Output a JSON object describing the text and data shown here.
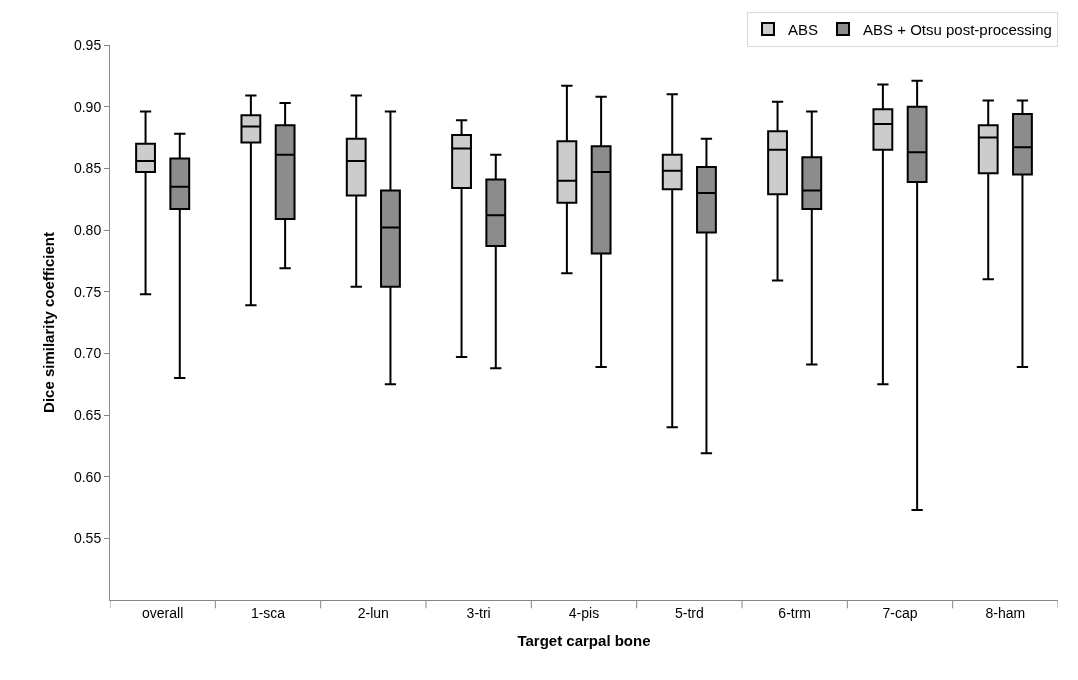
{
  "chart_data": {
    "type": "box",
    "xlabel": "Target carpal bone",
    "ylabel": "Dice similarity coefficient",
    "categories": [
      "overall",
      "1-sca",
      "2-lun",
      "3-tri",
      "4-pis",
      "5-trd",
      "6-trm",
      "7-cap",
      "8-ham"
    ],
    "ylim": [
      0.5,
      0.95
    ],
    "yticks": [
      0.55,
      {
        "value": 0.6,
        "label": "0.60"
      },
      0.65,
      {
        "value": 0.7,
        "label": "0.70"
      },
      0.75,
      {
        "value": 0.8,
        "label": "0.80"
      },
      0.85,
      {
        "value": 0.9,
        "label": "0.90"
      },
      0.95
    ],
    "grid": false,
    "legend": "top right",
    "series": [
      {
        "name": "ABS",
        "color": "#cccccc",
        "boxes": [
          {
            "low": 0.748,
            "q1": 0.847,
            "median": 0.856,
            "q3": 0.87,
            "high": 0.896
          },
          {
            "low": 0.739,
            "q1": 0.871,
            "median": 0.884,
            "q3": 0.893,
            "high": 0.909
          },
          {
            "low": 0.754,
            "q1": 0.828,
            "median": 0.856,
            "q3": 0.874,
            "high": 0.909
          },
          {
            "low": 0.697,
            "q1": 0.834,
            "median": 0.866,
            "q3": 0.877,
            "high": 0.889
          },
          {
            "low": 0.765,
            "q1": 0.822,
            "median": 0.84,
            "q3": 0.872,
            "high": 0.917
          },
          {
            "low": 0.64,
            "q1": 0.833,
            "median": 0.848,
            "q3": 0.861,
            "high": 0.91
          },
          {
            "low": 0.759,
            "q1": 0.829,
            "median": 0.865,
            "q3": 0.88,
            "high": 0.904
          },
          {
            "low": 0.675,
            "q1": 0.865,
            "median": 0.886,
            "q3": 0.898,
            "high": 0.918
          },
          {
            "low": 0.76,
            "q1": 0.846,
            "median": 0.875,
            "q3": 0.885,
            "high": 0.905
          }
        ]
      },
      {
        "name": "ABS + Otsu post-processing",
        "color": "#8c8c8c",
        "boxes": [
          {
            "low": 0.68,
            "q1": 0.817,
            "median": 0.835,
            "q3": 0.858,
            "high": 0.878
          },
          {
            "low": 0.769,
            "q1": 0.809,
            "median": 0.861,
            "q3": 0.885,
            "high": 0.903
          },
          {
            "low": 0.675,
            "q1": 0.754,
            "median": 0.802,
            "q3": 0.832,
            "high": 0.896
          },
          {
            "low": 0.688,
            "q1": 0.787,
            "median": 0.812,
            "q3": 0.841,
            "high": 0.861
          },
          {
            "low": 0.689,
            "q1": 0.781,
            "median": 0.847,
            "q3": 0.868,
            "high": 0.908
          },
          {
            "low": 0.619,
            "q1": 0.798,
            "median": 0.83,
            "q3": 0.851,
            "high": 0.874
          },
          {
            "low": 0.691,
            "q1": 0.817,
            "median": 0.832,
            "q3": 0.859,
            "high": 0.896
          },
          {
            "low": 0.573,
            "q1": 0.839,
            "median": 0.863,
            "q3": 0.9,
            "high": 0.921
          },
          {
            "low": 0.689,
            "q1": 0.845,
            "median": 0.867,
            "q3": 0.894,
            "high": 0.905
          }
        ]
      }
    ]
  }
}
